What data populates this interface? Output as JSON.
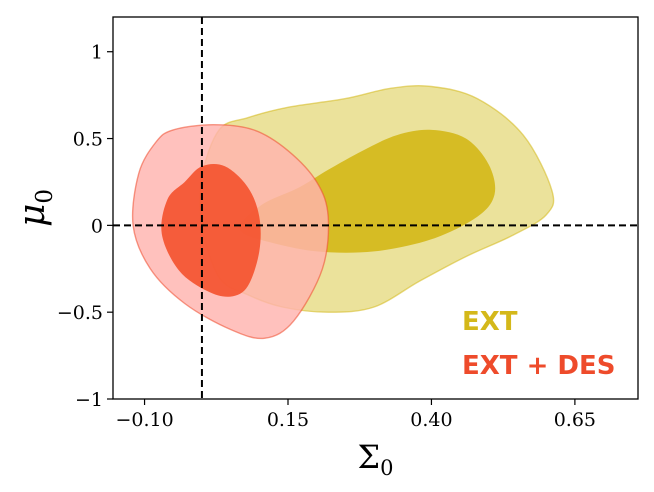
{
  "chart_data": {
    "type": "contour",
    "xlabel": "Σ0",
    "ylabel": "μ0",
    "xlim": [
      -0.155,
      0.76
    ],
    "ylim": [
      -1,
      1.2
    ],
    "xticks": [
      -0.1,
      0.15,
      0.4,
      0.65
    ],
    "xtick_labels": [
      "−0.10",
      "0.15",
      "0.40",
      "0.65"
    ],
    "yticks": [
      -1,
      -0.5,
      0,
      0.5,
      1
    ],
    "ytick_labels": [
      "−1",
      "−0.5",
      "0",
      "0.5",
      "1"
    ],
    "grid": false,
    "legend_position": "bottom-right",
    "reference_lines": [
      {
        "orientation": "vertical",
        "value": 0,
        "style": "dashed",
        "color": "#000000"
      },
      {
        "orientation": "horizontal",
        "value": 0,
        "style": "dashed",
        "color": "#000000"
      }
    ],
    "series": [
      {
        "name": "EXT",
        "color": "#d4b81a",
        "inner_color": "#d4b81a",
        "outer_color": "#e8dd8a",
        "contours": {
          "outer_95": [
            [
              0.03,
              0.55
            ],
            [
              0.08,
              0.62
            ],
            [
              0.15,
              0.68
            ],
            [
              0.25,
              0.73
            ],
            [
              0.33,
              0.79
            ],
            [
              0.4,
              0.8
            ],
            [
              0.48,
              0.73
            ],
            [
              0.56,
              0.52
            ],
            [
              0.61,
              0.2
            ],
            [
              0.6,
              0.06
            ],
            [
              0.54,
              -0.06
            ],
            [
              0.46,
              -0.18
            ],
            [
              0.38,
              -0.32
            ],
            [
              0.3,
              -0.47
            ],
            [
              0.22,
              -0.5
            ],
            [
              0.14,
              -0.47
            ],
            [
              0.08,
              -0.4
            ],
            [
              0.03,
              -0.3
            ],
            [
              0.0,
              0.0
            ],
            [
              0.0,
              0.28
            ]
          ],
          "inner_68": [
            [
              0.07,
              0.02
            ],
            [
              0.11,
              0.13
            ],
            [
              0.17,
              0.22
            ],
            [
              0.22,
              0.32
            ],
            [
              0.28,
              0.43
            ],
            [
              0.34,
              0.52
            ],
            [
              0.4,
              0.55
            ],
            [
              0.46,
              0.5
            ],
            [
              0.5,
              0.35
            ],
            [
              0.51,
              0.18
            ],
            [
              0.48,
              0.05
            ],
            [
              0.4,
              -0.08
            ],
            [
              0.3,
              -0.15
            ],
            [
              0.2,
              -0.15
            ],
            [
              0.11,
              -0.09
            ],
            [
              0.07,
              -0.04
            ]
          ]
        }
      },
      {
        "name": "EXT + DES",
        "color": "#ee4b2b",
        "inner_color": "#f4512c",
        "outer_color": "#ffb3ae",
        "contours": {
          "outer_95": [
            [
              -0.05,
              0.55
            ],
            [
              0.02,
              0.58
            ],
            [
              0.09,
              0.55
            ],
            [
              0.15,
              0.43
            ],
            [
              0.2,
              0.25
            ],
            [
              0.22,
              0.05
            ],
            [
              0.21,
              -0.25
            ],
            [
              0.16,
              -0.55
            ],
            [
              0.11,
              -0.65
            ],
            [
              0.05,
              -0.6
            ],
            [
              -0.03,
              -0.45
            ],
            [
              -0.09,
              -0.25
            ],
            [
              -0.12,
              0.0
            ],
            [
              -0.11,
              0.3
            ],
            [
              -0.08,
              0.48
            ]
          ],
          "inner_68": [
            [
              -0.03,
              0.25
            ],
            [
              0.0,
              0.34
            ],
            [
              0.04,
              0.34
            ],
            [
              0.08,
              0.22
            ],
            [
              0.1,
              0.05
            ],
            [
              0.1,
              -0.15
            ],
            [
              0.08,
              -0.35
            ],
            [
              0.05,
              -0.41
            ],
            [
              0.01,
              -0.38
            ],
            [
              -0.04,
              -0.26
            ],
            [
              -0.07,
              -0.05
            ],
            [
              -0.06,
              0.15
            ]
          ]
        }
      }
    ]
  }
}
